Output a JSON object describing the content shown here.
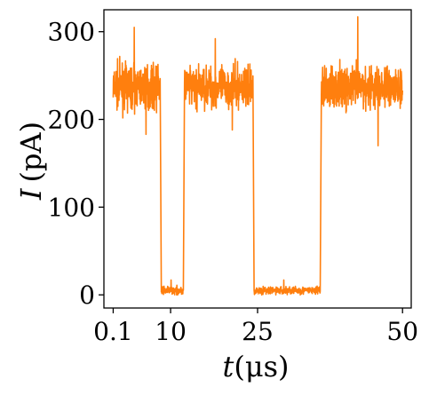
{
  "chart_data": {
    "type": "line",
    "xlabel": {
      "var": "t",
      "unit": "(μs)"
    },
    "ylabel": {
      "var": "I",
      "unit": "(pA)"
    },
    "x_ticks": [
      0.1,
      10,
      25,
      50
    ],
    "x_tick_labels": [
      "0.1",
      "10",
      "25",
      "50"
    ],
    "y_ticks": [
      0,
      100,
      200,
      300
    ],
    "y_tick_labels": [
      "0",
      "100",
      "200",
      "300"
    ],
    "xlim": [
      -1.5,
      51.5
    ],
    "ylim": [
      -15,
      325
    ],
    "grid": false,
    "legend": "none",
    "series": [
      {
        "color": "#ff7f0e",
        "segments": [
          {
            "x_start": 0.1,
            "x_end": 8.2,
            "mean": 237,
            "noise": 22,
            "min": 183,
            "max": 305
          },
          {
            "x_start": 8.4,
            "x_end": 12.2,
            "mean": 5,
            "noise": 4,
            "min": 0,
            "max": 17
          },
          {
            "x_start": 12.4,
            "x_end": 24.2,
            "mean": 237,
            "noise": 21,
            "min": 188,
            "max": 292
          },
          {
            "x_start": 24.4,
            "x_end": 35.8,
            "mean": 5,
            "noise": 4,
            "min": 0,
            "max": 17
          },
          {
            "x_start": 36.0,
            "x_end": 50.0,
            "mean": 237,
            "noise": 22,
            "min": 170,
            "max": 317
          }
        ]
      }
    ]
  }
}
